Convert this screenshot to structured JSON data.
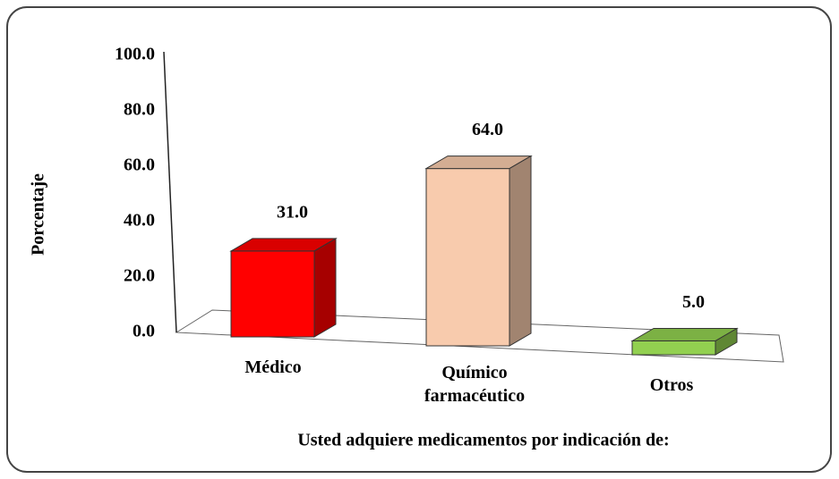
{
  "chart_data": {
    "type": "bar3d",
    "x_label": "Usted adquiere medicamentos por indicación de:",
    "y_label": "Porcentaje",
    "categories": [
      "Médico",
      "Químico farmacéutico",
      "Otros"
    ],
    "values": [
      31.0,
      64.0,
      5.0
    ],
    "value_labels": [
      "31.0",
      "64.0",
      "5.0"
    ],
    "colors": [
      "#ff0000",
      "#f8cbad",
      "#92d050"
    ],
    "ylim": [
      0,
      100
    ],
    "yticks": [
      {
        "value": 0,
        "label": "0.0"
      },
      {
        "value": 20,
        "label": "20.0"
      },
      {
        "value": 40,
        "label": "40.0"
      },
      {
        "value": 60,
        "label": "60.0"
      },
      {
        "value": 80,
        "label": "80.0"
      },
      {
        "value": 100,
        "label": "100.0"
      }
    ],
    "grid": false
  }
}
